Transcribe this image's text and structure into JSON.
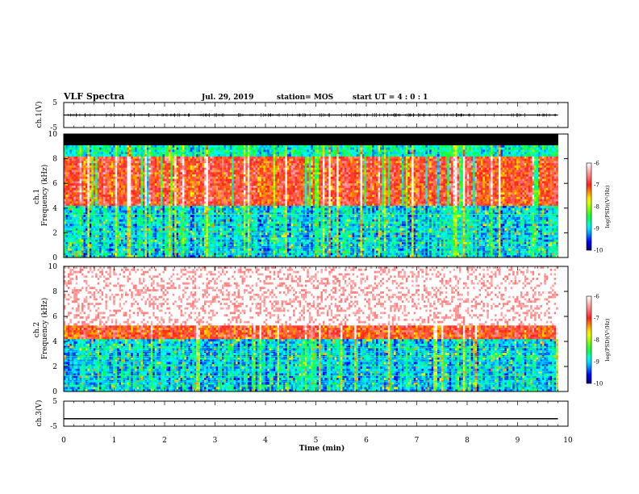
{
  "header": {
    "title": "VLF Spectra",
    "date": "Jul. 29, 2019",
    "station": "station= MOS",
    "start": "start  UT =   4 : 0  : 1"
  },
  "colors": {
    "spectrum_scale": [
      "#000000",
      "#00008b",
      "#0000ff",
      "#00a0ff",
      "#00ffff",
      "#00ff40",
      "#80ff00",
      "#ffff00",
      "#ffa000",
      "#ff2020",
      "#ff9090",
      "#ffffff"
    ]
  },
  "chart_data": [
    {
      "type": "line",
      "name": "ch.1 waveform",
      "ylabel": "ch.1(V)",
      "ylim": [
        -5,
        5
      ],
      "yticks": [
        "5",
        "-5"
      ],
      "x": [
        0,
        9.8
      ],
      "y": [
        0,
        0
      ]
    },
    {
      "type": "heatmap",
      "name": "ch.1 spectrogram",
      "ylabel": "ch.1\nFrequency (kHz)",
      "ylim": [
        0,
        10
      ],
      "yticks": [
        "0",
        "2",
        "4",
        "6",
        "8",
        "10"
      ],
      "xlim": [
        0,
        10
      ],
      "data_end_min": 9.8,
      "bands": [
        {
          "f_from": 9.1,
          "f_to": 10.0,
          "level": "black (no data)"
        },
        {
          "f_from": 8.2,
          "f_to": 9.1,
          "level": -8.8
        },
        {
          "f_from": 4.2,
          "f_to": 8.2,
          "level": -7.0
        },
        {
          "f_from": 0.0,
          "f_to": 4.2,
          "level": -9.0
        }
      ],
      "colorbar": {
        "label": "log(PSD)(V²/Hz)",
        "min": -10,
        "max": -6,
        "ticks": [
          "-6",
          "-7",
          "-8",
          "-9",
          "-10"
        ]
      }
    },
    {
      "type": "heatmap",
      "name": "ch.2 spectrogram",
      "ylabel": "ch.2\nFrequency (kHz)",
      "ylim": [
        0,
        10
      ],
      "yticks": [
        "0",
        "2",
        "4",
        "6",
        "8",
        "10"
      ],
      "xlim": [
        0,
        10
      ],
      "data_end_min": 9.8,
      "bands": [
        {
          "f_from": 5.3,
          "f_to": 10.0,
          "level": -6.5
        },
        {
          "f_from": 4.2,
          "f_to": 5.3,
          "level": -7.0
        },
        {
          "f_from": 0.0,
          "f_to": 4.2,
          "level": -9.0
        }
      ],
      "colorbar": {
        "label": "log(PSD)(V²/Hz)",
        "min": -10,
        "max": -6,
        "ticks": [
          "-6",
          "-7",
          "-8",
          "-9",
          "-10"
        ]
      }
    },
    {
      "type": "line",
      "name": "ch.3 waveform",
      "ylabel": "ch.3(V)",
      "ylim": [
        -5,
        5
      ],
      "yticks": [
        "5",
        "-5"
      ],
      "x": [
        0,
        9.8
      ],
      "y": [
        -2.0,
        -2.0
      ],
      "xlabel": "Time (min)",
      "xlim": [
        0,
        10
      ],
      "xticks": [
        "0",
        "1",
        "2",
        "3",
        "4",
        "5",
        "6",
        "7",
        "8",
        "9",
        "10"
      ]
    }
  ]
}
